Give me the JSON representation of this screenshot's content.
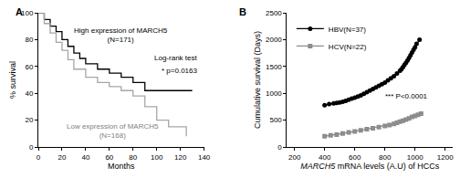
{
  "chart_data": [
    {
      "type": "step",
      "title": "A",
      "x_label": "Months",
      "y_label": "% survival",
      "xlim": [
        0,
        140
      ],
      "xticks": [
        0,
        20,
        40,
        60,
        80,
        100,
        120,
        140
      ],
      "ylim": [
        0,
        100
      ],
      "yticks": [
        0,
        20,
        40,
        60,
        80,
        100
      ],
      "annotations": [
        "Log-rank test",
        "* p=0.0163"
      ],
      "series": [
        {
          "name": "High expression of MARCH5 (N=171)",
          "color": "#000000",
          "line_style": "solid",
          "x": [
            0,
            5,
            10,
            15,
            20,
            25,
            30,
            35,
            40,
            50,
            60,
            70,
            80,
            90,
            100,
            110,
            130
          ],
          "values": [
            100,
            95,
            90,
            86,
            80,
            75,
            70,
            66,
            62,
            58,
            55,
            52,
            48,
            42,
            42,
            42,
            42
          ]
        },
        {
          "name": "Low expression of MARCH5 (N=168)",
          "color": "#a6a6a6",
          "line_style": "solid",
          "x": [
            0,
            5,
            10,
            15,
            20,
            25,
            30,
            40,
            50,
            60,
            70,
            80,
            90,
            100,
            110,
            125
          ],
          "values": [
            100,
            92,
            85,
            78,
            72,
            65,
            58,
            52,
            48,
            45,
            42,
            38,
            30,
            20,
            15,
            8
          ]
        }
      ]
    },
    {
      "type": "line",
      "title": "B",
      "x_label": "MARCH5 mRNA levels (A.U) of HCCs",
      "y_label": "Cumulative survival (Days)",
      "xlim": [
        150,
        1250
      ],
      "xticks": [
        200,
        400,
        600,
        800,
        1000,
        1200
      ],
      "ylim": [
        0,
        2500
      ],
      "yticks": [
        0,
        500,
        1000,
        1500,
        2000,
        2500
      ],
      "legend": "upper left",
      "annotations": [
        "*** P<0.0001"
      ],
      "series": [
        {
          "name": "HBV(N=37)",
          "color": "#000000",
          "marker": "circle",
          "line_style": "solid",
          "x": [
            400,
            430,
            460,
            480,
            500,
            520,
            540,
            560,
            580,
            600,
            620,
            640,
            660,
            680,
            700,
            720,
            740,
            760,
            780,
            800,
            820,
            840,
            860,
            880,
            900,
            910,
            920,
            930,
            940,
            950,
            960,
            970,
            980,
            990,
            1000,
            1010,
            1030
          ],
          "values": [
            780,
            800,
            810,
            820,
            830,
            840,
            860,
            880,
            900,
            920,
            940,
            960,
            990,
            1020,
            1050,
            1080,
            1110,
            1140,
            1170,
            1200,
            1240,
            1280,
            1320,
            1370,
            1420,
            1450,
            1490,
            1530,
            1570,
            1610,
            1660,
            1710,
            1760,
            1810,
            1860,
            1920,
            2000
          ]
        },
        {
          "name": "HCV(N=22)",
          "color": "#8c8c8c",
          "marker": "square",
          "line_style": "solid",
          "x": [
            400,
            440,
            480,
            520,
            560,
            600,
            640,
            680,
            720,
            760,
            800,
            830,
            860,
            880,
            900,
            920,
            940,
            960,
            980,
            1000,
            1020,
            1040
          ],
          "values": [
            200,
            215,
            230,
            250,
            270,
            290,
            310,
            330,
            350,
            370,
            390,
            410,
            430,
            450,
            470,
            490,
            510,
            530,
            560,
            580,
            600,
            620
          ]
        }
      ]
    }
  ]
}
